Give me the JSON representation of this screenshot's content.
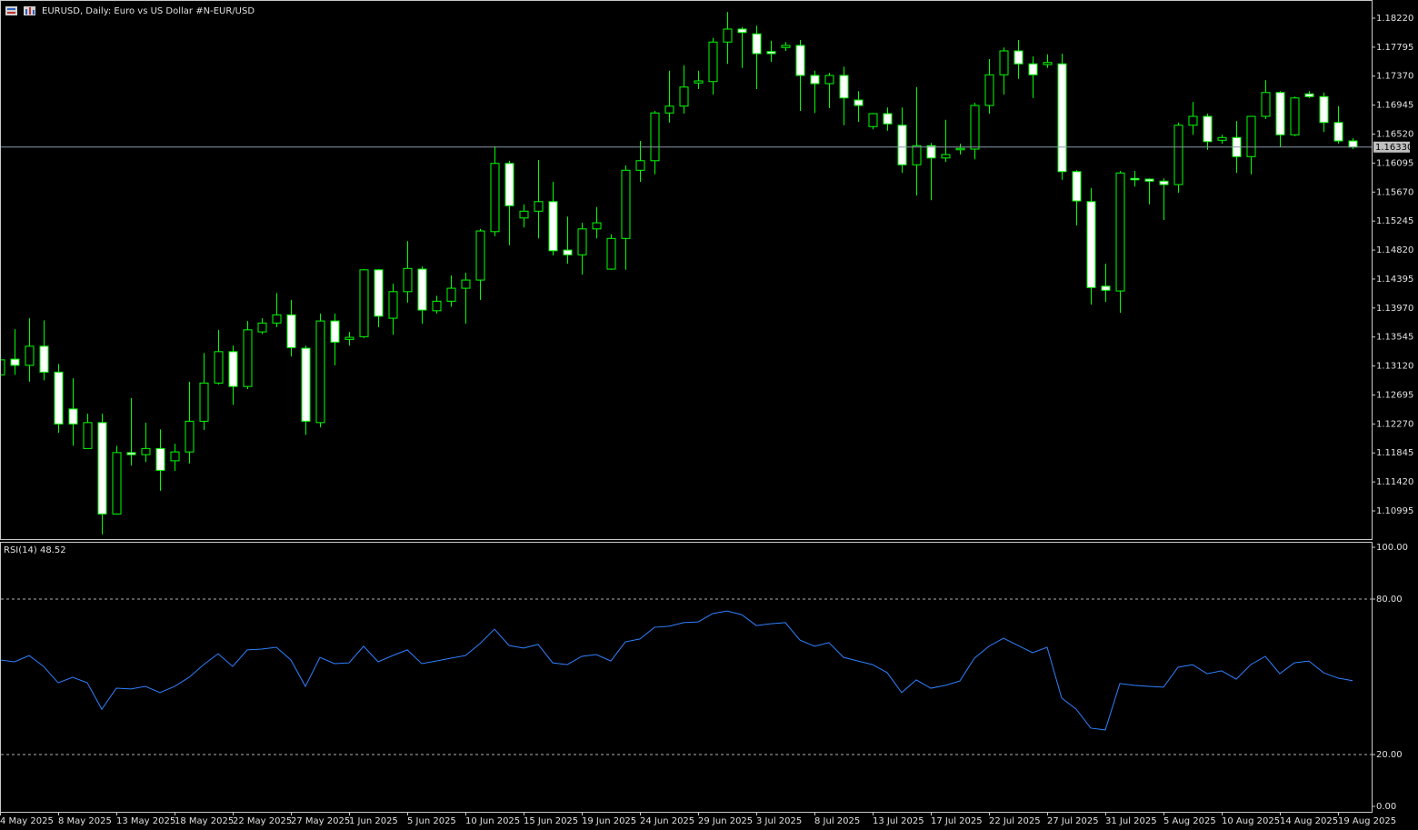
{
  "chart_data": [
    {
      "type": "candlestick",
      "title": "EURUSD, Daily:  Euro vs US Dollar #N-EUR/USD",
      "categories": [
        "4 May 2025",
        null,
        null,
        null,
        "8 May 2025",
        null,
        null,
        null,
        "13 May 2025",
        null,
        null,
        null,
        "18 May 2025",
        null,
        null,
        null,
        "22 May 2025",
        null,
        null,
        null,
        "27 May 2025",
        null,
        null,
        null,
        "1 Jun 2025",
        null,
        null,
        null,
        "5 Jun 2025",
        null,
        null,
        null,
        "10 Jun 2025",
        null,
        null,
        null,
        "15 Jun 2025",
        null,
        null,
        null,
        "19 Jun 2025",
        null,
        null,
        null,
        "24 Jun 2025",
        null,
        null,
        null,
        "29 Jun 2025",
        null,
        null,
        null,
        "3 Jul 2025",
        null,
        null,
        null,
        "8 Jul 2025",
        null,
        null,
        null,
        "13 Jul 2025",
        null,
        null,
        null,
        "17 Jul 2025",
        null,
        null,
        null,
        "22 Jul 2025",
        null,
        null,
        null,
        "27 Jul 2025",
        null,
        null,
        null,
        "31 Jul 2025",
        null,
        null,
        null,
        "5 Aug 2025",
        null,
        null,
        null,
        "10 Aug 2025",
        null,
        null,
        null,
        "14 Aug 2025",
        null,
        null,
        null,
        "19 Aug 2025",
        null
      ],
      "open": [
        1.1299,
        1.1322,
        1.1313,
        1.1341,
        1.1303,
        1.1249,
        1.1191,
        1.1229,
        1.1095,
        1.1185,
        1.1182,
        1.1191,
        1.1173,
        1.1186,
        1.1231,
        1.1287,
        1.1333,
        1.1282,
        1.1362,
        1.1375,
        1.1387,
        1.1338,
        1.1229,
        1.1378,
        1.1351,
        1.1355,
        1.1453,
        1.1382,
        1.1421,
        1.1454,
        1.1393,
        1.1407,
        1.1426,
        1.1438,
        1.1509,
        1.1609,
        1.1529,
        1.1539,
        1.1553,
        1.1482,
        1.1475,
        1.1513,
        1.1454,
        1.1499,
        1.1599,
        1.1613,
        1.1683,
        1.1693,
        1.1727,
        1.1729,
        1.1787,
        1.1806,
        1.1799,
        1.1773,
        1.1779,
        1.1782,
        1.1738,
        1.1726,
        1.1738,
        1.1702,
        1.1663,
        1.1682,
        1.1665,
        1.1607,
        1.1635,
        1.1617,
        1.1629,
        1.163,
        1.1694,
        1.1739,
        1.1774,
        1.1755,
        1.1754,
        1.1755,
        1.1597,
        1.1553,
        1.1429,
        1.1422,
        1.1587,
        1.1586,
        1.1583,
        1.1578,
        1.1665,
        1.1678,
        1.1643,
        1.1647,
        1.1619,
        1.1678,
        1.1713,
        1.1651,
        1.1711,
        1.1707,
        1.1669,
        1.1642
      ],
      "high": [
        1.1329,
        1.1366,
        1.1382,
        1.1379,
        1.1315,
        1.1294,
        1.1242,
        1.1242,
        1.1195,
        1.1265,
        1.1229,
        1.1219,
        1.1198,
        1.1289,
        1.1331,
        1.1365,
        1.1342,
        1.1378,
        1.1382,
        1.1419,
        1.1409,
        1.1342,
        1.1389,
        1.1389,
        1.1362,
        1.1454,
        1.1454,
        1.1433,
        1.1495,
        1.1458,
        1.1415,
        1.1445,
        1.1449,
        1.1513,
        1.1634,
        1.1613,
        1.1549,
        1.1614,
        1.1582,
        1.1531,
        1.1522,
        1.1545,
        1.1505,
        1.1606,
        1.1642,
        1.1686,
        1.1745,
        1.1753,
        1.1745,
        1.1793,
        1.1831,
        1.1809,
        1.1811,
        1.1789,
        1.1787,
        1.179,
        1.1745,
        1.1742,
        1.1751,
        1.1715,
        1.1683,
        1.1691,
        1.1691,
        1.1721,
        1.1639,
        1.1673,
        1.1638,
        1.1698,
        1.1762,
        1.1779,
        1.179,
        1.1766,
        1.1769,
        1.177,
        1.1599,
        1.1573,
        1.1462,
        1.1598,
        1.1598,
        1.1587,
        1.1587,
        1.1669,
        1.1699,
        1.1682,
        1.1651,
        1.1671,
        1.1678,
        1.1731,
        1.1715,
        1.1707,
        1.1715,
        1.1713,
        1.1693,
        1.1646
      ],
      "low": [
        1.1297,
        1.1299,
        1.1289,
        1.1291,
        1.1214,
        1.1195,
        1.1191,
        1.1065,
        1.1094,
        1.1166,
        1.1171,
        1.1129,
        1.1158,
        1.1169,
        1.1218,
        1.1285,
        1.1255,
        1.1278,
        1.1359,
        1.1369,
        1.1326,
        1.1211,
        1.1222,
        1.1313,
        1.1342,
        1.1353,
        1.1369,
        1.1358,
        1.1405,
        1.1374,
        1.1389,
        1.1399,
        1.1374,
        1.1409,
        1.1502,
        1.1489,
        1.1515,
        1.1499,
        1.1474,
        1.1462,
        1.1446,
        1.1499,
        1.1453,
        1.1453,
        1.1582,
        1.1593,
        1.1669,
        1.1682,
        1.1718,
        1.171,
        1.1755,
        1.1749,
        1.1718,
        1.1758,
        1.1774,
        1.1686,
        1.1683,
        1.169,
        1.1665,
        1.167,
        1.1659,
        1.1657,
        1.1595,
        1.1562,
        1.1555,
        1.1611,
        1.1622,
        1.1615,
        1.1682,
        1.171,
        1.1733,
        1.1705,
        1.1749,
        1.1585,
        1.1518,
        1.1402,
        1.1406,
        1.139,
        1.1575,
        1.1549,
        1.1526,
        1.1566,
        1.1651,
        1.1629,
        1.1638,
        1.1595,
        1.1593,
        1.1674,
        1.1633,
        1.1649,
        1.1705,
        1.1655,
        1.1638,
        1.163
      ],
      "close": [
        1.1321,
        1.1313,
        1.1341,
        1.1303,
        1.1227,
        1.1227,
        1.1229,
        1.1095,
        1.1185,
        1.1182,
        1.1191,
        1.1159,
        1.1186,
        1.1231,
        1.1287,
        1.1333,
        1.1282,
        1.1365,
        1.1375,
        1.1387,
        1.1339,
        1.1231,
        1.1378,
        1.1347,
        1.1354,
        1.1453,
        1.1385,
        1.1421,
        1.1455,
        1.1394,
        1.1407,
        1.1426,
        1.1438,
        1.151,
        1.1609,
        1.1547,
        1.1539,
        1.1553,
        1.1481,
        1.1475,
        1.1513,
        1.1522,
        1.1499,
        1.1599,
        1.1613,
        1.1683,
        1.1693,
        1.1721,
        1.173,
        1.1787,
        1.1806,
        1.1801,
        1.177,
        1.177,
        1.1782,
        1.1738,
        1.1726,
        1.1738,
        1.1705,
        1.1694,
        1.1682,
        1.1667,
        1.1607,
        1.1635,
        1.1617,
        1.1622,
        1.1631,
        1.1694,
        1.1739,
        1.1774,
        1.1755,
        1.1739,
        1.1757,
        1.1597,
        1.1554,
        1.1427,
        1.1423,
        1.1595,
        1.1585,
        1.1583,
        1.1578,
        1.1665,
        1.1678,
        1.1641,
        1.1647,
        1.1619,
        1.1678,
        1.1713,
        1.1651,
        1.1705,
        1.1707,
        1.1669,
        1.1642,
        1.1633
      ],
      "bull_color": "#000000",
      "bear_color": "#ffffff",
      "wick_color": "#00ff00",
      "ylim": [
        1.10582,
        1.18473
      ],
      "yticks": [
        {
          "value": 1.1822,
          "label": "1.18220"
        },
        {
          "value": 1.17795,
          "label": "1.17795"
        },
        {
          "value": 1.1737,
          "label": "1.17370"
        },
        {
          "value": 1.16945,
          "label": "1.16945"
        },
        {
          "value": 1.1652,
          "label": "1.16520"
        },
        {
          "value": 1.16095,
          "label": "1.16095"
        },
        {
          "value": 1.1567,
          "label": "1.15670"
        },
        {
          "value": 1.15245,
          "label": "1.15245"
        },
        {
          "value": 1.1482,
          "label": "1.14820"
        },
        {
          "value": 1.14395,
          "label": "1.14395"
        },
        {
          "value": 1.1397,
          "label": "1.13970"
        },
        {
          "value": 1.13545,
          "label": "1.13545"
        },
        {
          "value": 1.1312,
          "label": "1.13120"
        },
        {
          "value": 1.12695,
          "label": "1.12695"
        },
        {
          "value": 1.1227,
          "label": "1.12270"
        },
        {
          "value": 1.11845,
          "label": "1.11845"
        },
        {
          "value": 1.1142,
          "label": "1.11420"
        },
        {
          "value": 1.10995,
          "label": "1.10995"
        }
      ],
      "current_price": {
        "value": 1.1633,
        "label": "1.16330"
      }
    },
    {
      "type": "line",
      "title": "RSI(14) 48.52",
      "values": [
        56.5,
        55.8,
        58.2,
        54.0,
        47.7,
        49.8,
        47.7,
        37.5,
        45.6,
        45.3,
        46.3,
        43.9,
        46.3,
        49.8,
        54.7,
        58.9,
        54.0,
        60.4,
        60.7,
        61.4,
        56.5,
        46.3,
        57.5,
        55.1,
        55.4,
        61.8,
        55.8,
        58.2,
        60.4,
        55.1,
        56.1,
        57.2,
        58.2,
        62.8,
        68.4,
        62.1,
        61.1,
        62.5,
        55.4,
        54.7,
        57.9,
        58.6,
        56.1,
        63.5,
        64.6,
        69.1,
        69.5,
        70.9,
        71.2,
        74.4,
        75.4,
        74.0,
        69.8,
        70.5,
        70.9,
        64.2,
        61.8,
        63.2,
        57.5,
        56.1,
        54.7,
        51.6,
        43.9,
        48.8,
        45.6,
        46.7,
        48.4,
        57.2,
        61.8,
        64.9,
        62.1,
        59.3,
        61.4,
        41.8,
        37.5,
        30.2,
        29.5,
        47.4,
        46.7,
        46.3,
        46.0,
        53.7,
        54.7,
        51.2,
        52.3,
        49.1,
        54.7,
        57.9,
        51.2,
        55.4,
        56.1,
        51.6,
        49.5,
        48.52
      ],
      "color": "#2f80ff",
      "ylim": [
        -2.1,
        101.75
      ],
      "yticks": [
        {
          "value": 100,
          "label": "100.00"
        },
        {
          "value": 80,
          "label": "80.00"
        },
        {
          "value": 20,
          "label": "20.00"
        },
        {
          "value": 0,
          "label": "0.00"
        }
      ],
      "levels": [
        80,
        20
      ]
    }
  ]
}
